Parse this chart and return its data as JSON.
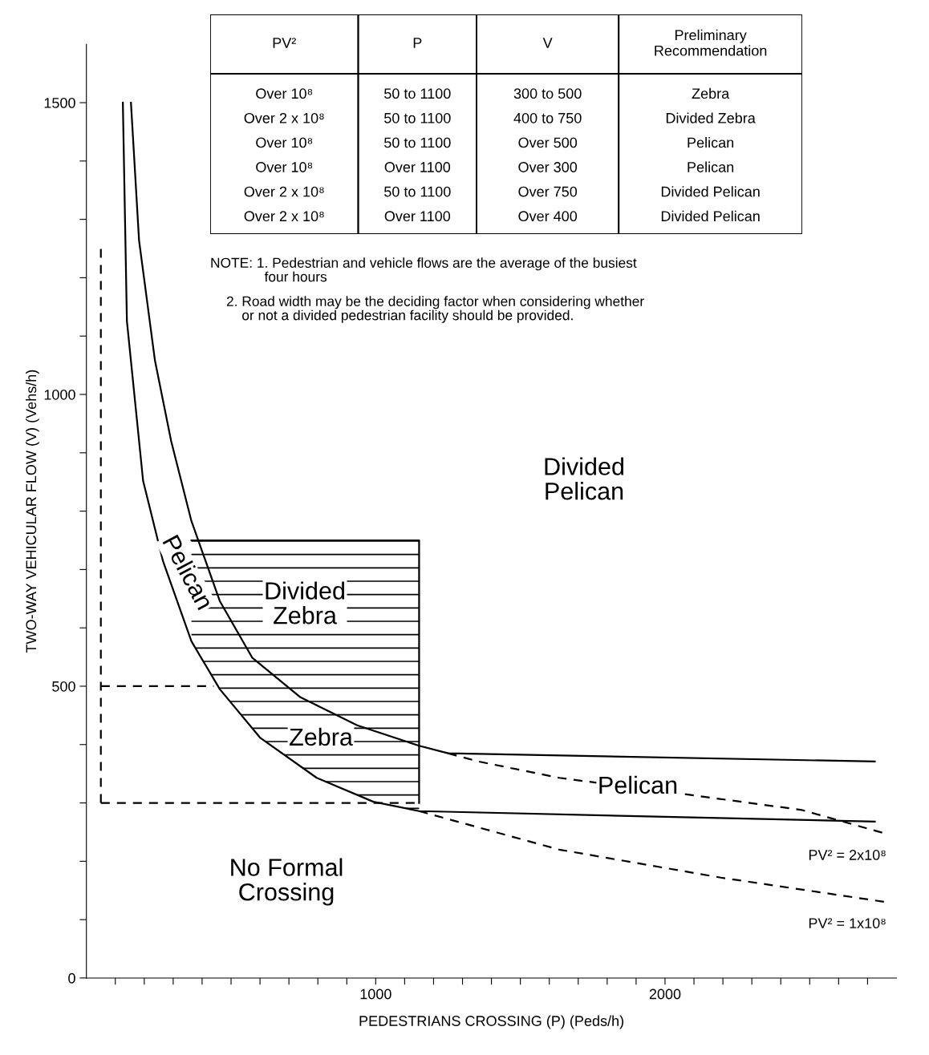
{
  "chart_data": [
    {
      "type": "line",
      "xlabel": "PEDESTRIANS CROSSING (P) (Peds/h)",
      "ylabel": "TWO-WAY VEHICULAR FLOW (V) (Vehs/h)",
      "xlim": [
        0,
        2800
      ],
      "ylim": [
        0,
        1600
      ],
      "xticks": [
        {
          "value": 100,
          "label": null
        },
        {
          "value": 200,
          "label": null
        },
        {
          "value": 300,
          "label": null
        },
        {
          "value": 400,
          "label": null
        },
        {
          "value": 500,
          "label": null
        },
        {
          "value": 600,
          "label": null
        },
        {
          "value": 700,
          "label": null
        },
        {
          "value": 800,
          "label": null
        },
        {
          "value": 900,
          "label": null
        },
        1000,
        {
          "value": 1100,
          "label": null
        },
        {
          "value": 1200,
          "label": null
        },
        {
          "value": 1300,
          "label": null
        },
        {
          "value": 1400,
          "label": null
        },
        {
          "value": 1500,
          "label": null
        },
        {
          "value": 1600,
          "label": null
        },
        {
          "value": 1700,
          "label": null
        },
        {
          "value": 1800,
          "label": null
        },
        {
          "value": 1900,
          "label": null
        },
        2000,
        {
          "value": 2100,
          "label": null
        },
        {
          "value": 2200,
          "label": null
        },
        {
          "value": 2300,
          "label": null
        },
        {
          "value": 2400,
          "label": null
        },
        {
          "value": 2500,
          "label": null
        },
        {
          "value": 2600,
          "label": null
        },
        {
          "value": 2700,
          "label": null
        }
      ],
      "yticks": [
        0,
        {
          "value": 100,
          "label": null
        },
        {
          "value": 200,
          "label": null
        },
        {
          "value": 300,
          "label": null
        },
        {
          "value": 400,
          "label": null
        },
        500,
        {
          "value": 600,
          "label": null
        },
        {
          "value": 700,
          "label": null
        },
        {
          "value": 800,
          "label": null
        },
        {
          "value": 900,
          "label": null
        },
        1000,
        {
          "value": 1100,
          "label": null
        },
        {
          "value": 1200,
          "label": null
        },
        {
          "value": 1300,
          "label": null
        },
        {
          "value": 1400,
          "label": null
        },
        1500
      ],
      "grid": false,
      "legend": false,
      "series": [
        {
          "type": "line",
          "color": "#000000",
          "line_style": "solid",
          "x": [
            126,
            140,
            196,
            265,
            363,
            461,
            600,
            796,
            992,
            1150,
            2725
          ],
          "values": [
            1500,
            1126,
            852,
            714,
            577,
            495,
            412,
            343,
            302,
            286,
            268
          ]
        },
        {
          "type": "line",
          "color": "#000000",
          "line_style": "solid",
          "x": [
            154,
            182,
            237,
            293,
            363,
            461,
            573,
            740,
            936,
            1150,
            1250,
            2725
          ],
          "values": [
            1500,
            1264,
            1058,
            920,
            783,
            646,
            549,
            481,
            433,
            398,
            385,
            371
          ]
        },
        {
          "type": "line",
          "color": "#000000",
          "line_style": "dashed",
          "x": [
            1150,
            1634,
            2193,
            2765
          ],
          "values": [
            286,
            220,
            172,
            130
          ]
        },
        {
          "type": "line",
          "color": "#000000",
          "line_style": "dashed",
          "x": [
            1250,
            1355,
            1634,
            2053,
            2472,
            2765
          ],
          "values": [
            385,
            371,
            343,
            316,
            288,
            247
          ]
        },
        {
          "type": "line",
          "color": "#000000",
          "line_style": "dashed",
          "x": [
            50,
            50
          ],
          "values": [
            300,
            1250
          ]
        },
        {
          "type": "line",
          "color": "#000000",
          "line_style": "dashed",
          "x": [
            50,
            1150
          ],
          "values": [
            300,
            300
          ]
        },
        {
          "type": "line",
          "color": "#000000",
          "line_style": "dashed",
          "x": [
            50,
            440
          ],
          "values": [
            500,
            500
          ]
        },
        {
          "type": "line",
          "color": "#000000",
          "line_style": "solid",
          "x": [
            363,
            1150,
            1150
          ],
          "values": [
            750,
            750,
            300
          ]
        }
      ],
      "annotations": [
        "Divided\nPelican",
        "Pelican",
        "Divided\nZebra",
        "Zebra",
        "Pelican",
        "No Formal\nCrossing",
        {
          "text": "PV² = 2x10⁸",
          "x": 2765,
          "y": 247
        },
        {
          "text": "PV² = 1x10⁸",
          "x": 2765,
          "y": 130
        },
        "NOTE: 1. Pedestrian and vehicle flows are the average of the busiest\n              four hours",
        "2. Road width may be the deciding factor when considering whether\n    or not a divided pedestrian facility should be provided."
      ]
    },
    {
      "type": "other",
      "categories": [
        "PV²",
        "P",
        "V",
        "Preliminary\nRecommendation"
      ],
      "annotations": [
        "Over 10⁸",
        "50 to 1100",
        "300 to 500",
        "Zebra",
        "Over 2 x 10⁸",
        "50 to 1100",
        "400 to 750",
        "Divided Zebra",
        "Over 10⁸",
        "50 to 1100",
        "Over 500",
        "Pelican",
        "Over 10⁸",
        "Over 1100",
        "Over 300",
        "Pelican",
        "Over 2 x 10⁸",
        "50 to 1100",
        "Over 750",
        "Divided Pelican",
        "Over 2 x 10⁸",
        "Over 1100",
        "Over 400",
        "Divided Pelican"
      ]
    }
  ]
}
